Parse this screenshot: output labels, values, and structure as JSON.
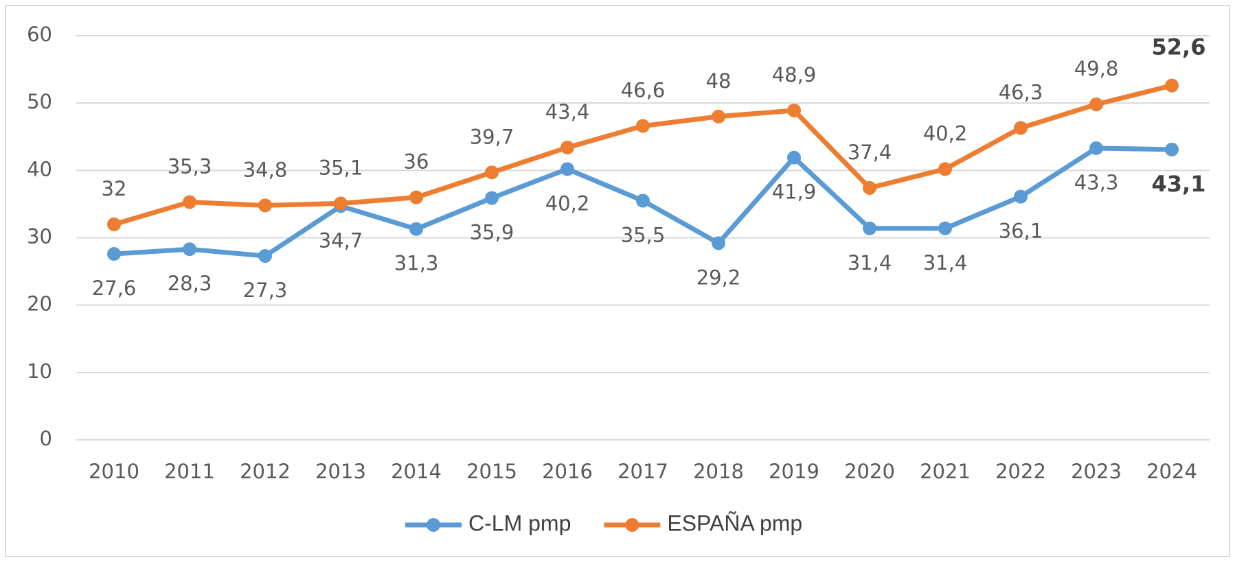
{
  "chart_data": {
    "type": "line",
    "categories": [
      "2010",
      "2011",
      "2012",
      "2013",
      "2014",
      "2015",
      "2016",
      "2017",
      "2018",
      "2019",
      "2020",
      "2021",
      "2022",
      "2023",
      "2024"
    ],
    "series": [
      {
        "name": "C-LM pmp",
        "color": "#5b9bd5",
        "values": [
          27.6,
          28.3,
          27.3,
          34.7,
          31.3,
          35.9,
          40.2,
          35.5,
          29.2,
          41.9,
          31.4,
          31.4,
          36.1,
          43.3,
          43.1
        ],
        "value_labels": [
          "27,6",
          "28,3",
          "27,3",
          "34,7",
          "31,3",
          "35,9",
          "40,2",
          "35,5",
          "29,2",
          "41,9",
          "31,4",
          "31,4",
          "36,1",
          "43,3",
          "43,1"
        ]
      },
      {
        "name": "ESPAÑA pmp",
        "color": "#ed7d31",
        "values": [
          32,
          35.3,
          34.8,
          35.1,
          36,
          39.7,
          43.4,
          46.6,
          48,
          48.9,
          37.4,
          40.2,
          46.3,
          49.8,
          52.6
        ],
        "value_labels": [
          "32",
          "35,3",
          "34,8",
          "35,1",
          "36",
          "39,7",
          "43,4",
          "46,6",
          "48",
          "48,9",
          "37,4",
          "40,2",
          "46,3",
          "49,8",
          "52,6"
        ]
      }
    ],
    "ylim": [
      0,
      60
    ],
    "yticks": [
      0,
      10,
      20,
      30,
      40,
      50,
      60
    ],
    "grid": true,
    "legend": "bottom"
  }
}
